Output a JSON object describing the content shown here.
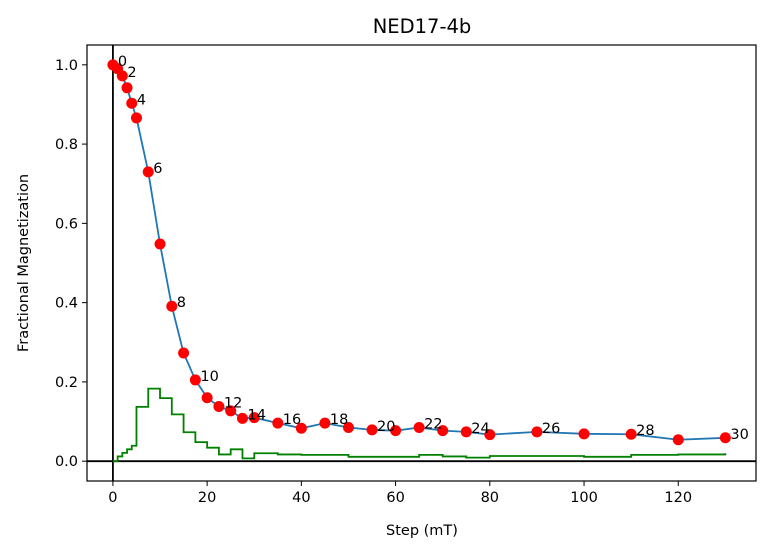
{
  "chart_data": {
    "type": "line",
    "title": "NED17-4b",
    "xlabel": "Step (mT)",
    "ylabel": "Fractional Magnetization",
    "xlim": [
      -5.5,
      136.5
    ],
    "ylim": [
      -0.05,
      1.05
    ],
    "xticks": [
      0,
      20,
      40,
      60,
      80,
      100,
      120
    ],
    "yticks": [
      0.0,
      0.2,
      0.4,
      0.6,
      0.8,
      1.0
    ],
    "ytick_labels": [
      "0.0",
      "0.2",
      "0.4",
      "0.6",
      "0.8",
      "1.0"
    ],
    "grid": false,
    "reference_lines": {
      "x": 0,
      "y": 0
    },
    "series": [
      {
        "style": "line-with-markers",
        "line_color": "#1f77b4",
        "marker_color": "#ff0000",
        "x": [
          0,
          1,
          2,
          3,
          4,
          5,
          7.5,
          10,
          12.5,
          15,
          17.5,
          20,
          22.5,
          25,
          27.5,
          30,
          35,
          40,
          45,
          50,
          55,
          60,
          65,
          70,
          75,
          80,
          90,
          100,
          110,
          120,
          130
        ],
        "y": [
          1.0,
          0.99,
          0.972,
          0.942,
          0.903,
          0.866,
          0.73,
          0.548,
          0.391,
          0.273,
          0.205,
          0.16,
          0.138,
          0.127,
          0.108,
          0.11,
          0.096,
          0.083,
          0.096,
          0.085,
          0.079,
          0.077,
          0.085,
          0.077,
          0.074,
          0.067,
          0.074,
          0.069,
          0.068,
          0.054,
          0.059
        ]
      },
      {
        "style": "step",
        "line_color": "#008000",
        "x": [
          0,
          1,
          2,
          3,
          4,
          5,
          7.5,
          10,
          12.5,
          15,
          17.5,
          20,
          22.5,
          25,
          27.5,
          30,
          35,
          40,
          45,
          50,
          55,
          60,
          65,
          70,
          75,
          80,
          90,
          100,
          110,
          120,
          130
        ],
        "y": [
          0.0,
          0.012,
          0.021,
          0.03,
          0.039,
          0.137,
          0.183,
          0.159,
          0.118,
          0.073,
          0.048,
          0.034,
          0.017,
          0.03,
          0.007,
          0.02,
          0.017,
          0.016,
          0.016,
          0.011,
          0.011,
          0.011,
          0.016,
          0.012,
          0.009,
          0.013,
          0.013,
          0.011,
          0.016,
          0.017,
          0.02
        ]
      }
    ],
    "point_labels": [
      {
        "text": "0",
        "x": 0,
        "y": 1.0
      },
      {
        "text": "2",
        "x": 2,
        "y": 0.972
      },
      {
        "text": "4",
        "x": 4,
        "y": 0.903
      },
      {
        "text": "6",
        "x": 7.5,
        "y": 0.73
      },
      {
        "text": "8",
        "x": 12.5,
        "y": 0.391
      },
      {
        "text": "10",
        "x": 17.5,
        "y": 0.205
      },
      {
        "text": "12",
        "x": 22.5,
        "y": 0.138
      },
      {
        "text": "14",
        "x": 27.5,
        "y": 0.108
      },
      {
        "text": "16",
        "x": 35,
        "y": 0.096
      },
      {
        "text": "18",
        "x": 45,
        "y": 0.096
      },
      {
        "text": "20",
        "x": 55,
        "y": 0.079
      },
      {
        "text": "22",
        "x": 65,
        "y": 0.085
      },
      {
        "text": "24",
        "x": 75,
        "y": 0.074
      },
      {
        "text": "26",
        "x": 90,
        "y": 0.074
      },
      {
        "text": "28",
        "x": 110,
        "y": 0.068
      },
      {
        "text": "30",
        "x": 130,
        "y": 0.059
      }
    ]
  }
}
